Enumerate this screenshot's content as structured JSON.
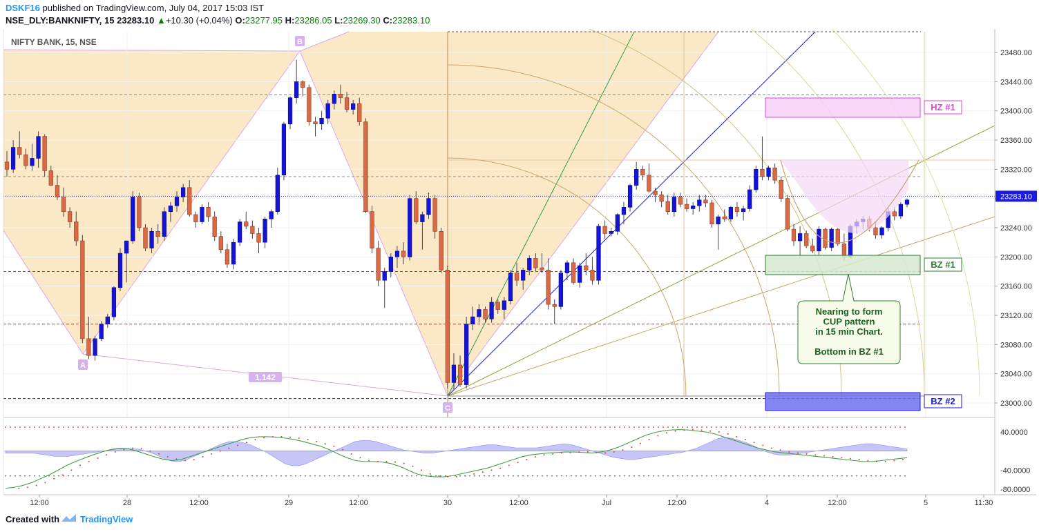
{
  "header": {
    "author": "DSKF16",
    "published_text": "published on TradingView.com, July 04, 2017 15:03 IST",
    "symbol": "NSE_DLY:BANKNIFTY, 15",
    "last": "23283.10",
    "change": "+10.30 (+0.04%)",
    "o_label": "O:",
    "o": "23277.95",
    "h_label": "H:",
    "h": "23286.05",
    "l_label": "L:",
    "l": "23269.30",
    "c_label": "C:",
    "c": "23283.10"
  },
  "footer": {
    "created": "Created with",
    "brand": "TradingView"
  },
  "colors": {
    "bull": "#1414d8",
    "bear": "#d96a45",
    "pattern_fill": "#fbe5c0",
    "accent": "#2196f3"
  },
  "chart_data": {
    "type": "candlestick",
    "title": "NIFTY BANK, 15, NSE",
    "ylim": [
      22980,
      23500
    ],
    "y_ticks": [
      "23480.00",
      "23440.00",
      "23400.00",
      "23360.00",
      "23320.00",
      "23280.00",
      "23240.00",
      "23200.00",
      "23160.00",
      "23120.00",
      "23080.00",
      "23040.00",
      "23000.00"
    ],
    "x_ticks": [
      "12:00",
      "28",
      "12:00",
      "29",
      "12:00",
      "30",
      "12:00",
      "Jul",
      "12:00",
      "4",
      "12:00",
      "5",
      "11:30"
    ],
    "last_price_label": "23283.10",
    "harmonic_points": [
      "A",
      "B",
      "C"
    ],
    "ratio_label": "1.142",
    "zones": [
      {
        "label": "HZ #1",
        "low": 23385,
        "high": 23410,
        "color": "#e040e0"
      },
      {
        "label": "BZ #1",
        "low": 23165,
        "high": 23195,
        "color": "#2e7d32"
      },
      {
        "label": "BZ #2",
        "low": 22978,
        "high": 23005,
        "color": "#1a1ae0"
      }
    ],
    "annotation": [
      "Nearing to form",
      "CUP pattern",
      "in 15 min Chart.",
      "",
      "Bottom in BZ #1"
    ],
    "candles": [
      [
        23330,
        23345,
        23310,
        23320
      ],
      [
        23320,
        23360,
        23315,
        23350
      ],
      [
        23350,
        23372,
        23335,
        23340
      ],
      [
        23340,
        23348,
        23320,
        23325
      ],
      [
        23325,
        23355,
        23318,
        23335
      ],
      [
        23335,
        23372,
        23322,
        23365
      ],
      [
        23365,
        23368,
        23310,
        23318
      ],
      [
        23318,
        23325,
        23300,
        23298
      ],
      [
        23298,
        23312,
        23278,
        23282
      ],
      [
        23282,
        23295,
        23255,
        23262
      ],
      [
        23262,
        23268,
        23240,
        23248
      ],
      [
        23248,
        23262,
        23215,
        23222
      ],
      [
        23222,
        23230,
        23082,
        23088
      ],
      [
        23088,
        23118,
        23060,
        23065
      ],
      [
        23065,
        23092,
        23058,
        23088
      ],
      [
        23088,
        23112,
        23085,
        23108
      ],
      [
        23108,
        23122,
        23103,
        23118
      ],
      [
        23118,
        23160,
        23113,
        23158
      ],
      [
        23158,
        23212,
        23153,
        23205
      ],
      [
        23205,
        23222,
        23165,
        23222
      ],
      [
        23222,
        23290,
        23218,
        23282
      ],
      [
        23282,
        23288,
        23235,
        23240
      ],
      [
        23240,
        23245,
        23208,
        23212
      ],
      [
        23212,
        23240,
        23205,
        23235
      ],
      [
        23235,
        23245,
        23218,
        23228
      ],
      [
        23228,
        23268,
        23222,
        23262
      ],
      [
        23262,
        23275,
        23248,
        23270
      ],
      [
        23270,
        23290,
        23262,
        23282
      ],
      [
        23282,
        23300,
        23275,
        23295
      ],
      [
        23295,
        23305,
        23255,
        23258
      ],
      [
        23258,
        23262,
        23240,
        23248
      ],
      [
        23248,
        23272,
        23245,
        23268
      ],
      [
        23268,
        23275,
        23248,
        23255
      ],
      [
        23255,
        23262,
        23222,
        23228
      ],
      [
        23228,
        23235,
        23205,
        23210
      ],
      [
        23210,
        23218,
        23185,
        23190
      ],
      [
        23190,
        23225,
        23183,
        23220
      ],
      [
        23220,
        23252,
        23215,
        23248
      ],
      [
        23248,
        23262,
        23238,
        23242
      ],
      [
        23242,
        23250,
        23225,
        23232
      ],
      [
        23232,
        23240,
        23205,
        23220
      ],
      [
        23220,
        23255,
        23212,
        23252
      ],
      [
        23252,
        23265,
        23240,
        23262
      ],
      [
        23262,
        23322,
        23258,
        23312
      ],
      [
        23312,
        23385,
        23305,
        23382
      ],
      [
        23382,
        23420,
        23375,
        23418
      ],
      [
        23418,
        23470,
        23410,
        23440
      ],
      [
        23440,
        23442,
        23420,
        23432
      ],
      [
        23432,
        23436,
        23380,
        23385
      ],
      [
        23385,
        23392,
        23365,
        23382
      ],
      [
        23382,
        23400,
        23374,
        23390
      ],
      [
        23390,
        23415,
        23382,
        23410
      ],
      [
        23410,
        23428,
        23402,
        23423
      ],
      [
        23423,
        23436,
        23410,
        23418
      ],
      [
        23418,
        23426,
        23398,
        23402
      ],
      [
        23402,
        23415,
        23395,
        23410
      ],
      [
        23410,
        23418,
        23380,
        23385
      ],
      [
        23385,
        23390,
        23260,
        23262
      ],
      [
        23262,
        23270,
        23205,
        23212
      ],
      [
        23212,
        23222,
        23160,
        23168
      ],
      [
        23168,
        23185,
        23130,
        23180
      ],
      [
        23180,
        23205,
        23172,
        23200
      ],
      [
        23200,
        23215,
        23185,
        23208
      ],
      [
        23208,
        23220,
        23190,
        23200
      ],
      [
        23200,
        23285,
        23195,
        23280
      ],
      [
        23280,
        23290,
        23245,
        23248
      ],
      [
        23248,
        23262,
        23210,
        23258
      ],
      [
        23258,
        23288,
        23252,
        23280
      ],
      [
        23280,
        23285,
        23225,
        23235
      ],
      [
        23235,
        23240,
        23178,
        23182
      ],
      [
        23182,
        23188,
        23020,
        23028
      ],
      [
        23028,
        23068,
        23018,
        23052
      ],
      [
        23052,
        23065,
        23022,
        23025
      ],
      [
        23025,
        23118,
        23020,
        23108
      ],
      [
        23108,
        23132,
        23100,
        23118
      ],
      [
        23118,
        23135,
        23110,
        23128
      ],
      [
        23128,
        23132,
        23110,
        23115
      ],
      [
        23115,
        23145,
        23110,
        23138
      ],
      [
        23138,
        23142,
        23122,
        23128
      ],
      [
        23128,
        23145,
        23115,
        23140
      ],
      [
        23140,
        23182,
        23135,
        23178
      ],
      [
        23178,
        23192,
        23160,
        23168
      ],
      [
        23168,
        23185,
        23155,
        23182
      ],
      [
        23182,
        23202,
        23175,
        23198
      ],
      [
        23198,
        23205,
        23180,
        23185
      ],
      [
        23185,
        23205,
        23178,
        23182
      ],
      [
        23182,
        23198,
        23128,
        23135
      ],
      [
        23135,
        23142,
        23108,
        23132
      ],
      [
        23132,
        23182,
        23128,
        23178
      ],
      [
        23178,
        23195,
        23168,
        23192
      ],
      [
        23192,
        23198,
        23162,
        23165
      ],
      [
        23165,
        23192,
        23158,
        23188
      ],
      [
        23188,
        23205,
        23175,
        23182
      ],
      [
        23182,
        23200,
        23162,
        23168
      ],
      [
        23168,
        23245,
        23162,
        23242
      ],
      [
        23242,
        23250,
        23225,
        23232
      ],
      [
        23232,
        23240,
        23228,
        23235
      ],
      [
        23235,
        23260,
        23230,
        23258
      ],
      [
        23258,
        23275,
        23245,
        23268
      ],
      [
        23268,
        23300,
        23262,
        23298
      ],
      [
        23298,
        23330,
        23292,
        23320
      ],
      [
        23320,
        23325,
        23305,
        23312
      ],
      [
        23312,
        23328,
        23288,
        23290
      ],
      [
        23290,
        23295,
        23275,
        23285
      ],
      [
        23285,
        23290,
        23268,
        23276
      ],
      [
        23276,
        23285,
        23258,
        23262
      ],
      [
        23262,
        23288,
        23255,
        23282
      ],
      [
        23282,
        23288,
        23268,
        23272
      ],
      [
        23272,
        23280,
        23262,
        23266
      ],
      [
        23266,
        23275,
        23258,
        23270
      ],
      [
        23270,
        23285,
        23262,
        23278
      ],
      [
        23278,
        23285,
        23268,
        23274
      ],
      [
        23274,
        23278,
        23240,
        23245
      ],
      [
        23245,
        23258,
        23210,
        23255
      ],
      [
        23255,
        23265,
        23248,
        23252
      ],
      [
        23252,
        23270,
        23248,
        23268
      ],
      [
        23268,
        23275,
        23255,
        23262
      ],
      [
        23262,
        23270,
        23250,
        23266
      ],
      [
        23266,
        23298,
        23262,
        23292
      ],
      [
        23292,
        23325,
        23288,
        23320
      ],
      [
        23320,
        23365,
        23305,
        23310
      ],
      [
        23310,
        23325,
        23305,
        23322
      ],
      [
        23322,
        23328,
        23300,
        23305
      ],
      [
        23305,
        23310,
        23275,
        23280
      ],
      [
        23280,
        23285,
        23235,
        23238
      ],
      [
        23238,
        23245,
        23215,
        23222
      ],
      [
        23222,
        23242,
        23198,
        23232
      ],
      [
        23232,
        23236,
        23212,
        23215
      ],
      [
        23215,
        23225,
        23205,
        23208
      ],
      [
        23208,
        23242,
        23200,
        23238
      ],
      [
        23238,
        23240,
        23210,
        23213
      ],
      [
        23213,
        23240,
        23208,
        23238
      ],
      [
        23238,
        23240,
        23215,
        23218
      ],
      [
        23218,
        23232,
        23195,
        23200
      ],
      [
        23200,
        23245,
        23198,
        23242
      ],
      [
        23242,
        23252,
        23232,
        23248
      ],
      [
        23248,
        23256,
        23238,
        23252
      ],
      [
        23252,
        23256,
        23235,
        23240
      ],
      [
        23240,
        23248,
        23225,
        23230
      ],
      [
        23230,
        23242,
        23225,
        23240
      ],
      [
        23240,
        23268,
        23235,
        23262
      ],
      [
        23262,
        23268,
        23250,
        23256
      ],
      [
        23256,
        23275,
        23252,
        23272
      ],
      [
        23272,
        23280,
        23268,
        23278
      ]
    ],
    "indicator": {
      "y_ticks": [
        "40.0000",
        "-40.0000",
        "-80.0000"
      ],
      "ylim": [
        -90,
        60
      ],
      "upper_level": 50,
      "lower_level": -52,
      "osc": [
        -78,
        -76,
        -72,
        -66,
        -58,
        -50,
        -40,
        -30,
        -22,
        -15,
        -8,
        -2,
        3,
        6,
        5,
        0,
        -6,
        -12,
        -17,
        -20,
        -18,
        -12,
        -6,
        0,
        6,
        12,
        18,
        24,
        28,
        30,
        30,
        29,
        27,
        24,
        20,
        15,
        10,
        3,
        -6,
        -14,
        -20,
        -22,
        -22,
        -23,
        -26,
        -32,
        -40,
        -48,
        -52,
        -54,
        -54,
        -52,
        -48,
        -44,
        -40,
        -36,
        -30,
        -24,
        -18,
        -12,
        -8,
        -6,
        -4,
        -3,
        -2,
        -2,
        -3,
        -4,
        -2,
        2,
        8,
        16,
        24,
        32,
        38,
        42,
        44,
        45,
        44,
        42,
        40,
        36,
        30,
        24,
        18,
        12,
        6,
        2,
        -2,
        -4,
        -6,
        -8,
        -10,
        -12,
        -14,
        -16,
        -18,
        -20,
        -22,
        -22,
        -20,
        -18,
        -16,
        -14
      ],
      "histogram": [
        -2,
        -2,
        -2,
        -2,
        -2,
        -3,
        -4,
        -5,
        -5,
        -5,
        -4,
        -3,
        -2,
        -1,
        0,
        1,
        2,
        2,
        2,
        2,
        0,
        -2,
        -5,
        -8,
        -10,
        -10,
        -8,
        -5,
        -2,
        1,
        4,
        7,
        9,
        9,
        8,
        6,
        3,
        0,
        -4,
        -8,
        -12,
        -14,
        -14,
        -12,
        -9,
        -6,
        -3,
        0,
        3,
        6,
        9,
        10,
        10,
        9,
        7,
        5,
        3,
        1,
        0,
        -1,
        -2,
        -2,
        -1,
        0,
        1,
        2,
        3,
        4,
        5,
        6,
        6,
        5,
        4,
        3,
        3,
        3,
        3,
        4,
        5,
        6,
        7,
        6,
        4,
        2,
        0,
        -2,
        -4,
        -6,
        -7,
        -8,
        -8,
        -7,
        -6,
        -5,
        -4,
        -3,
        -2,
        -1,
        1,
        3,
        6,
        9,
        12,
        13,
        12,
        10,
        8,
        5,
        2,
        -1,
        -3,
        -4,
        -4,
        -3,
        -2,
        -1,
        0,
        1,
        2,
        3,
        4,
        5,
        6,
        7,
        7,
        6,
        5,
        4,
        3,
        2
      ]
    }
  }
}
